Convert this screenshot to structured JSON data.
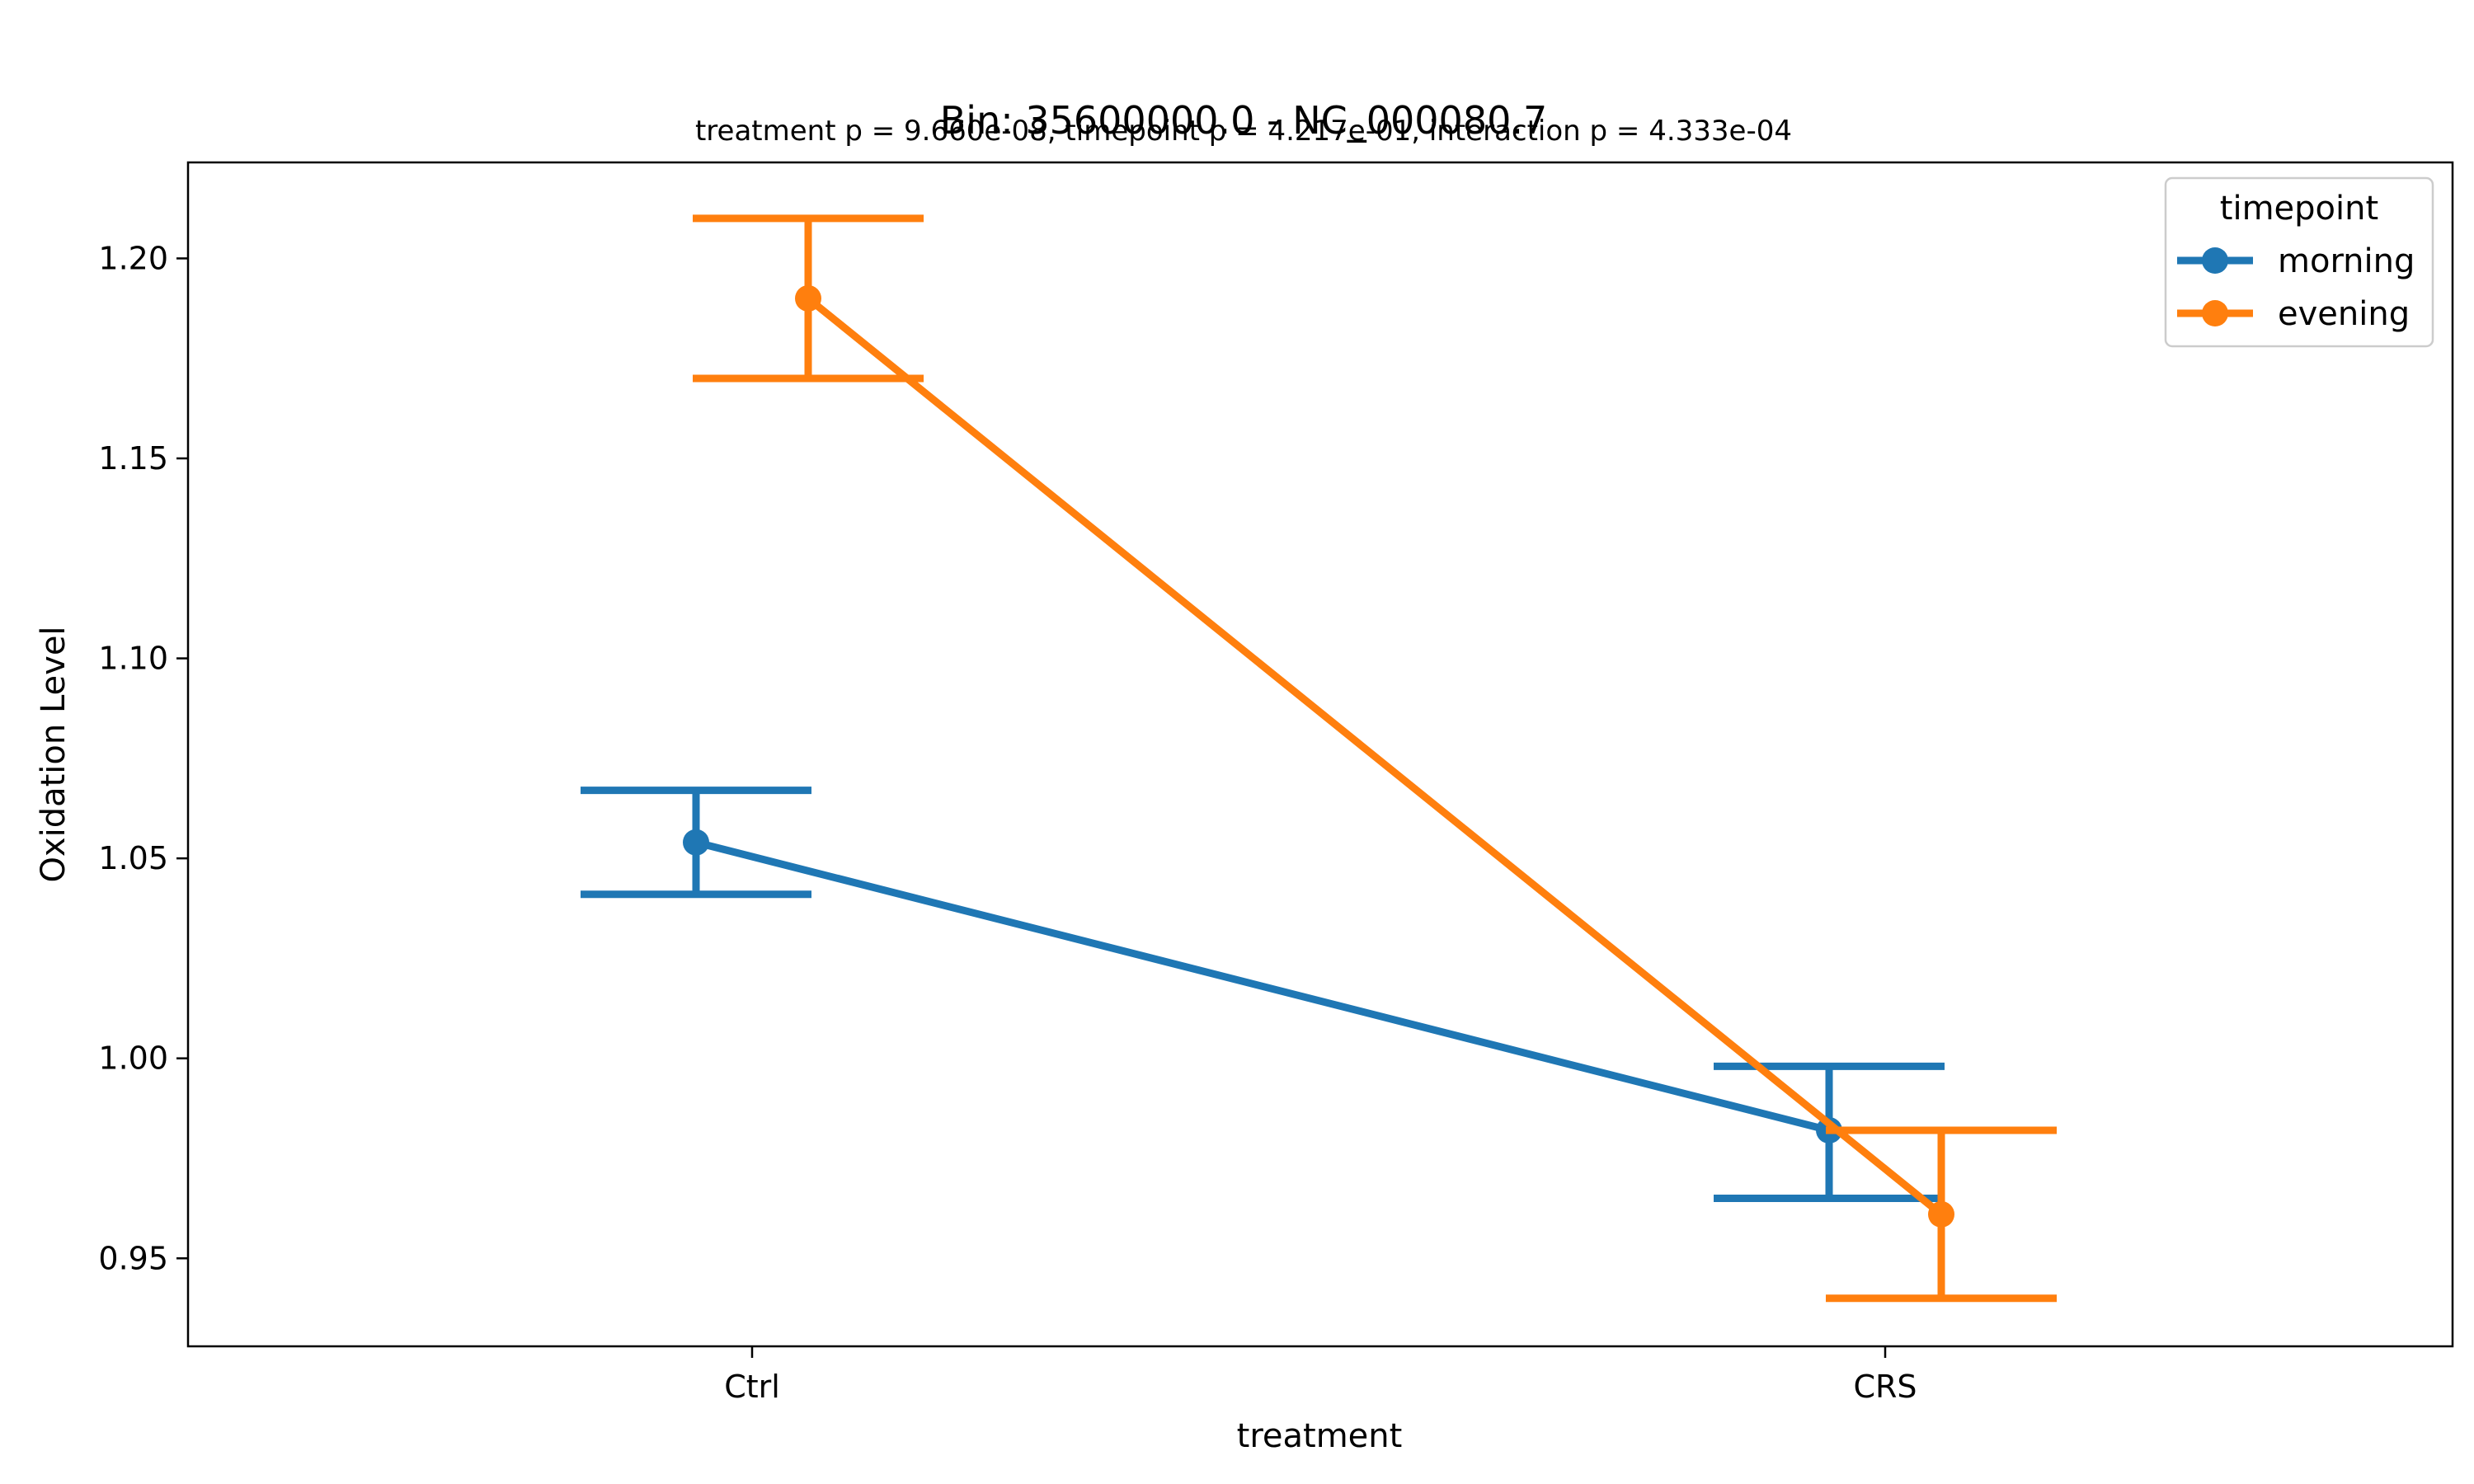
{
  "chart_data": {
    "type": "line",
    "title": "Bin: 35600000.0 - NC_000080.7",
    "subtitle": "treatment p = 9.660e-08, timepoint p = 4.217e-01, interaction p = 4.333e-04",
    "xlabel": "treatment",
    "ylabel": "Oxidation Level",
    "categories": [
      "Ctrl",
      "CRS"
    ],
    "ylim": [
      0.928,
      1.224
    ],
    "yticks": [
      0.95,
      1.0,
      1.05,
      1.1,
      1.15,
      1.2
    ],
    "ytick_labels": [
      "0.95",
      "1.00",
      "1.05",
      "1.10",
      "1.15",
      "1.20"
    ],
    "grid": false,
    "legend": {
      "title": "timepoint",
      "placement": "top-right"
    },
    "series": [
      {
        "name": "morning",
        "color": "#1f77b4",
        "values": [
          1.054,
          0.982
        ],
        "err_low": [
          1.041,
          0.965
        ],
        "err_high": [
          1.067,
          0.998
        ]
      },
      {
        "name": "evening",
        "color": "#ff7f0e",
        "values": [
          1.19,
          0.961
        ],
        "err_low": [
          1.17,
          0.94
        ],
        "err_high": [
          1.21,
          0.982
        ]
      }
    ]
  }
}
